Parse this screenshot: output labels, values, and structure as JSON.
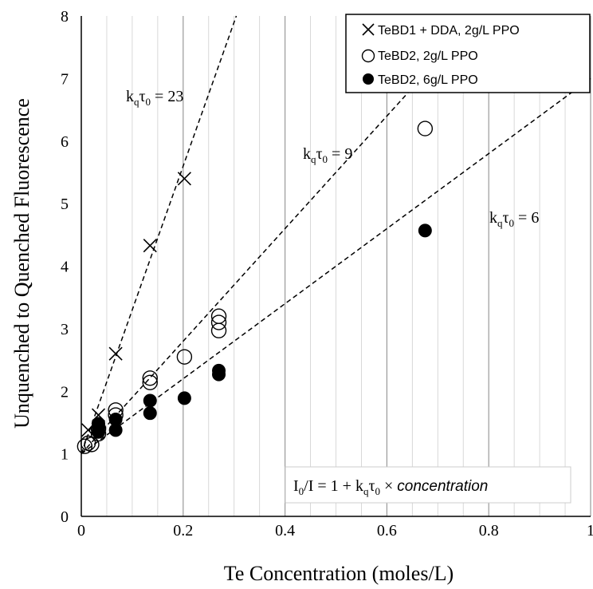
{
  "chart_data": {
    "type": "scatter",
    "title": "",
    "xlabel": "Te Concentration (moles/L)",
    "ylabel": "Unquenched to Quenched Fluorescence",
    "xlim": [
      0,
      1
    ],
    "ylim": [
      0,
      8
    ],
    "x_ticks": [
      "0",
      "0.2",
      "0.4",
      "0.6",
      "0.8",
      "1"
    ],
    "y_ticks": [
      "0",
      "1",
      "2",
      "3",
      "4",
      "5",
      "6",
      "7",
      "8"
    ],
    "grid": "vertical minor every 0.05 and major every 0.2 on x; horizontal none",
    "legend_position": "top-right",
    "series": [
      {
        "name": "TeBD1 + DDA, 2g/L PPO",
        "marker": "x",
        "color": "#000000",
        "x": [
          0.0135,
          0.0337,
          0.0675,
          0.135,
          0.2025
        ],
        "y": [
          1.38,
          1.62,
          2.6,
          4.33,
          5.4
        ]
      },
      {
        "name": "TeBD2, 2g/L PPO",
        "marker": "open-circle",
        "color": "#000000",
        "x": [
          0.0068,
          0.0135,
          0.0203,
          0.0337,
          0.0337,
          0.0675,
          0.0675,
          0.135,
          0.135,
          0.2025,
          0.27,
          0.27,
          0.27,
          0.675
        ],
        "y": [
          1.12,
          1.17,
          1.15,
          1.4,
          1.32,
          1.7,
          1.62,
          2.21,
          2.14,
          2.55,
          3.2,
          3.1,
          2.97,
          6.2
        ]
      },
      {
        "name": "TeBD2, 6g/L PPO",
        "marker": "filled-circle",
        "color": "#000000",
        "x": [
          0.0337,
          0.0337,
          0.0337,
          0.0675,
          0.0675,
          0.135,
          0.135,
          0.2025,
          0.27,
          0.27,
          0.675
        ],
        "y": [
          1.48,
          1.42,
          1.35,
          1.55,
          1.38,
          1.85,
          1.65,
          1.89,
          2.33,
          2.27,
          4.57
        ]
      }
    ],
    "fit_lines": [
      {
        "label_prefix": "k",
        "label_sub1": "q",
        "label_mid": "τ",
        "label_sub2": "0",
        "label_suffix": " = 23",
        "intercept": 1,
        "slope": 23
      },
      {
        "label_prefix": "k",
        "label_sub1": "q",
        "label_mid": "τ",
        "label_sub2": "0",
        "label_suffix": " = 9",
        "intercept": 1,
        "slope": 9
      },
      {
        "label_prefix": "k",
        "label_sub1": "q",
        "label_mid": "τ",
        "label_sub2": "0",
        "label_suffix": " = 6",
        "intercept": 1,
        "slope": 6
      }
    ],
    "formula": {
      "part1": "I",
      "part1_sub": "0",
      "part2": "/I  =  1 + k",
      "part2_sub1": "q",
      "part3": "τ",
      "part3_sub": "0",
      "part4": " × ",
      "part5_italic": "concentration"
    }
  }
}
